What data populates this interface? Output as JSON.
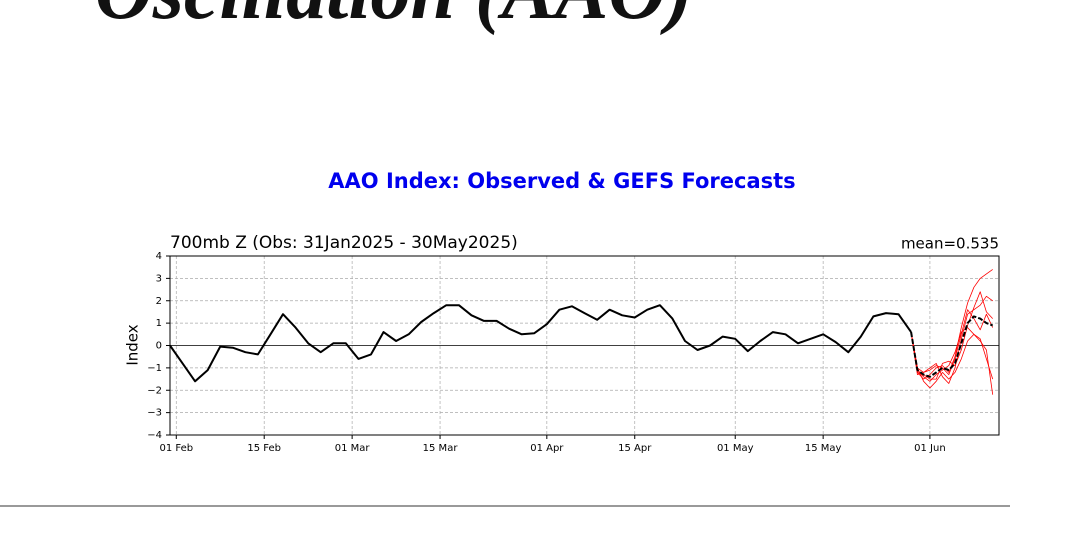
{
  "header": {
    "title": "Oscillation (AAO)"
  },
  "chart_data": {
    "type": "line",
    "title": "AAO Index: Observed & GEFS Forecasts",
    "subtitle": "700mb Z (Obs: 31Jan2025 - 30May2025)",
    "annotation": "mean=0.535",
    "ylabel": "Index",
    "xlim": [
      "2025-01-31",
      "2025-06-12"
    ],
    "ylim": [
      -4,
      4
    ],
    "xticks": [
      {
        "value": "2025-02-01",
        "label": "01 Feb"
      },
      {
        "value": "2025-02-15",
        "label": "15 Feb"
      },
      {
        "value": "2025-03-01",
        "label": "01 Mar"
      },
      {
        "value": "2025-03-15",
        "label": "15 Mar"
      },
      {
        "value": "2025-04-01",
        "label": "01 Apr"
      },
      {
        "value": "2025-04-15",
        "label": "15 Apr"
      },
      {
        "value": "2025-05-01",
        "label": "01 May"
      },
      {
        "value": "2025-05-15",
        "label": "15 May"
      },
      {
        "value": "2025-06-01",
        "label": "01 Jun"
      }
    ],
    "yticks": [
      {
        "value": -4,
        "label": "−4"
      },
      {
        "value": -3,
        "label": "−3"
      },
      {
        "value": -2,
        "label": "−2"
      },
      {
        "value": -1,
        "label": "−1"
      },
      0,
      1,
      2,
      3,
      4
    ],
    "grid": true,
    "x": [
      "2025-01-31",
      "2025-02-02",
      "2025-02-04",
      "2025-02-06",
      "2025-02-08",
      "2025-02-10",
      "2025-02-12",
      "2025-02-14",
      "2025-02-16",
      "2025-02-18",
      "2025-02-20",
      "2025-02-22",
      "2025-02-24",
      "2025-02-26",
      "2025-02-28",
      "2025-03-02",
      "2025-03-04",
      "2025-03-06",
      "2025-03-08",
      "2025-03-10",
      "2025-03-12",
      "2025-03-14",
      "2025-03-16",
      "2025-03-18",
      "2025-03-20",
      "2025-03-22",
      "2025-03-24",
      "2025-03-26",
      "2025-03-28",
      "2025-03-30",
      "2025-04-01",
      "2025-04-03",
      "2025-04-05",
      "2025-04-07",
      "2025-04-09",
      "2025-04-11",
      "2025-04-13",
      "2025-04-15",
      "2025-04-17",
      "2025-04-19",
      "2025-04-21",
      "2025-04-23",
      "2025-04-25",
      "2025-04-27",
      "2025-04-29",
      "2025-05-01",
      "2025-05-03",
      "2025-05-05",
      "2025-05-07",
      "2025-05-09",
      "2025-05-11",
      "2025-05-13",
      "2025-05-15",
      "2025-05-17",
      "2025-05-19",
      "2025-05-21",
      "2025-05-23",
      "2025-05-25",
      "2025-05-27",
      "2025-05-29"
    ],
    "series": [
      {
        "color": "#000000",
        "values": [
          0,
          -0.8,
          -1.6,
          -1.1,
          -0.05,
          -0.1,
          -0.3,
          -0.4,
          0.5,
          1.4,
          0.8,
          0.1,
          -0.3,
          0.1,
          0.1,
          -0.6,
          -0.4,
          0.6,
          0.2,
          0.5,
          1.05,
          1.45,
          1.8,
          1.8,
          1.35,
          1.1,
          1.1,
          0.75,
          0.5,
          0.55,
          0.95,
          1.6,
          1.75,
          1.45,
          1.15,
          1.6,
          1.35,
          1.25,
          1.6,
          1.8,
          1.2,
          0.2,
          -0.2,
          0,
          0.4,
          0.3,
          -0.25,
          0.2,
          0.6,
          0.5,
          0.1,
          0.3,
          0.5,
          0.15,
          -0.3,
          0.4,
          1.3,
          1.45,
          1.4,
          0.6
        ]
      }
    ],
    "forecast_x": [
      "2025-05-29",
      "2025-05-30",
      "2025-05-31",
      "2025-06-01",
      "2025-06-02",
      "2025-06-03",
      "2025-06-04",
      "2025-06-05",
      "2025-06-06",
      "2025-06-07",
      "2025-06-08",
      "2025-06-09",
      "2025-06-10",
      "2025-06-11"
    ],
    "forecast_series": [
      {
        "color": "#ff0000",
        "values": [
          0.6,
          -1.2,
          -1.5,
          -1.3,
          -1.0,
          -0.9,
          -1.2,
          -0.5,
          0.8,
          1.9,
          2.6,
          3.0,
          3.2,
          3.4
        ]
      },
      {
        "color": "#ff0000",
        "values": [
          0.6,
          -1.0,
          -1.6,
          -1.9,
          -1.6,
          -1.2,
          -1.5,
          -1.2,
          -0.6,
          0.2,
          0.5,
          0.3,
          -0.6,
          -1.5
        ]
      },
      {
        "color": "#ff0000",
        "values": [
          0.6,
          -1.3,
          -1.2,
          -1.0,
          -0.8,
          -1.4,
          -1.7,
          -1.0,
          0.3,
          1.4,
          1.6,
          1.8,
          2.2,
          2.0
        ]
      },
      {
        "color": "#ff0000",
        "values": [
          0.6,
          -1.1,
          -1.4,
          -1.6,
          -1.3,
          -1.1,
          -0.9,
          -0.3,
          0.6,
          0.8,
          0.5,
          0.2,
          -0.2,
          -2.2
        ]
      },
      {
        "color": "#ff0000",
        "values": [
          0.6,
          -1.2,
          -1.3,
          -1.5,
          -1.5,
          -0.8,
          -0.7,
          -0.9,
          -0.2,
          0.9,
          1.7,
          2.4,
          1.5,
          1.2
        ]
      },
      {
        "color": "#ff0000",
        "values": [
          0.6,
          -1.0,
          -1.2,
          -1.1,
          -0.9,
          -1.0,
          -1.3,
          -0.6,
          0.5,
          1.6,
          1.2,
          0.7,
          1.4,
          0.8
        ]
      },
      {
        "color": "#000000",
        "dashed": true,
        "values": [
          0.6,
          -1.1,
          -1.3,
          -1.4,
          -1.2,
          -1.0,
          -1.1,
          -0.8,
          0.1,
          1.0,
          1.3,
          1.2,
          1.0,
          0.9
        ]
      }
    ]
  }
}
